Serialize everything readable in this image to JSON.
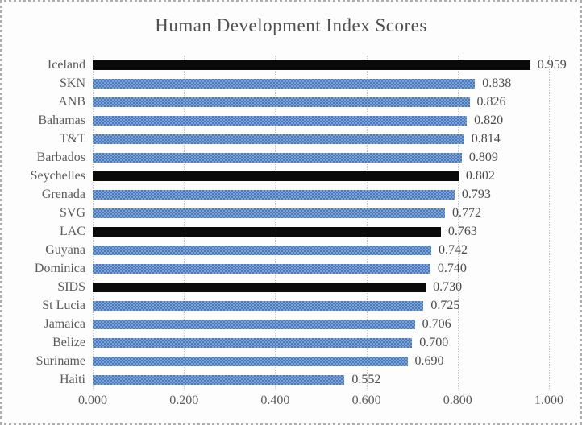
{
  "window": {
    "background_color": "#fdfdfd",
    "border_style": "dotted-gray"
  },
  "chart_data": {
    "type": "bar",
    "orientation": "horizontal",
    "title": "Human Development Index Scores",
    "categories": [
      "Iceland",
      "SKN",
      "ANB",
      "Bahamas",
      "T&T",
      "Barbados",
      "Seychelles",
      "Grenada",
      "SVG",
      "LAC",
      "Guyana",
      "Dominica",
      "SIDS",
      "St Lucia",
      "Jamaica",
      "Belize",
      "Suriname",
      "Haiti"
    ],
    "values": [
      0.959,
      0.838,
      0.826,
      0.82,
      0.814,
      0.809,
      0.802,
      0.793,
      0.772,
      0.763,
      0.742,
      0.74,
      0.73,
      0.725,
      0.706,
      0.7,
      0.69,
      0.552
    ],
    "value_labels": [
      "0.959",
      "0.838",
      "0.826",
      "0.820",
      "0.814",
      "0.809",
      "0.802",
      "0.793",
      "0.772",
      "0.763",
      "0.742",
      "0.740",
      "0.730",
      "0.725",
      "0.706",
      "0.700",
      "0.690",
      "0.552"
    ],
    "bar_styles": [
      "black",
      "blue",
      "blue",
      "blue",
      "blue",
      "blue",
      "black",
      "blue",
      "blue",
      "black",
      "blue",
      "blue",
      "black",
      "blue",
      "blue",
      "blue",
      "blue",
      "blue"
    ],
    "highlighted_categories": [
      "Iceland",
      "Seychelles",
      "LAC",
      "SIDS"
    ],
    "xlabel": "",
    "ylabel": "",
    "xlim": [
      0.0,
      1.0
    ],
    "x_ticks": [
      "0.000",
      "0.200",
      "0.400",
      "0.600",
      "0.800",
      "1.000"
    ],
    "x_tick_values": [
      0.0,
      0.2,
      0.4,
      0.6,
      0.8,
      1.0
    ],
    "grid": "vertical-dotted",
    "legend": "none",
    "colors": {
      "bar_blue": "#4a78b8",
      "bar_blue_light": "#7da4d8",
      "bar_black": "#0a0a0a",
      "category_text": "#595959",
      "value_text": "#4a4a4a",
      "title_text": "#4f4f4f",
      "gridline": "#c6c6c6"
    }
  }
}
